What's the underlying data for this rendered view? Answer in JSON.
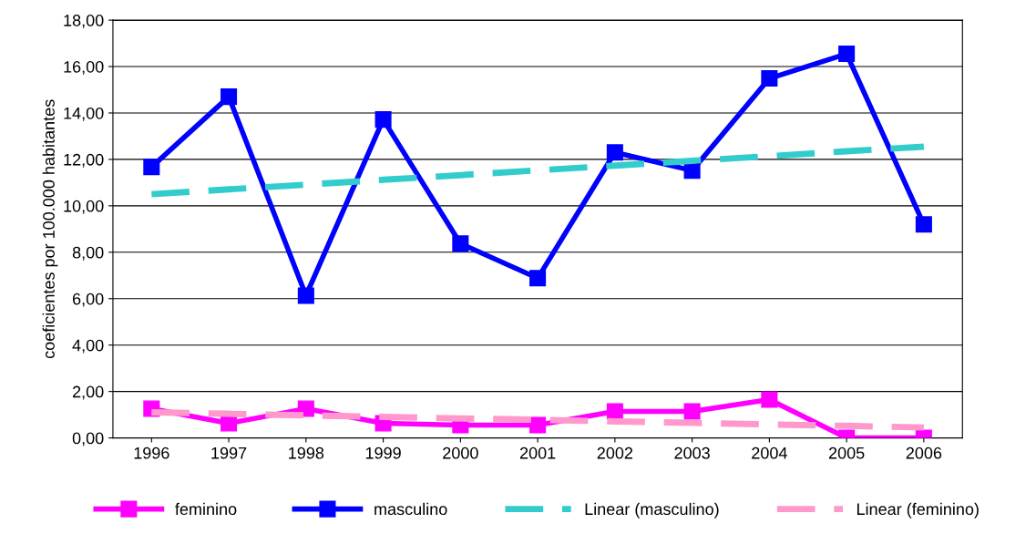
{
  "chart_data": {
    "type": "line",
    "ylabel": "coeficientes por 100.000 habitantes",
    "categories": [
      "1996",
      "1997",
      "1998",
      "1999",
      "2000",
      "2001",
      "2002",
      "2003",
      "2004",
      "2005",
      "2006"
    ],
    "ylim": [
      0,
      18
    ],
    "yticks": [
      {
        "value": 0,
        "label": "0,00"
      },
      {
        "value": 2,
        "label": "2,00"
      },
      {
        "value": 4,
        "label": "4,00"
      },
      {
        "value": 6,
        "label": "6,00"
      },
      {
        "value": 8,
        "label": "8,00"
      },
      {
        "value": 10,
        "label": "10,00"
      },
      {
        "value": 12,
        "label": "12,00"
      },
      {
        "value": 14,
        "label": "14,00"
      },
      {
        "value": 16,
        "label": "16,00"
      },
      {
        "value": 18,
        "label": "18,00"
      }
    ],
    "grid": "y",
    "legend": "bottom",
    "series": [
      {
        "name": "feminino",
        "color": "#ff00ff",
        "marker": "square",
        "line_style": "solid",
        "values": [
          1.26,
          0.63,
          1.26,
          0.63,
          0.55,
          0.55,
          1.14,
          1.14,
          1.65,
          0,
          0
        ]
      },
      {
        "name": "masculino",
        "color": "#0000ff",
        "marker": "square",
        "line_style": "solid",
        "values": [
          11.67,
          14.7,
          6.13,
          13.72,
          8.37,
          6.88,
          12.3,
          11.52,
          15.49,
          16.55,
          9.2
        ]
      },
      {
        "name": "Linear (masculino)",
        "color": "#33cccc",
        "marker": "none",
        "line_style": "dashed",
        "values": [
          10.5,
          10.71,
          10.91,
          11.12,
          11.32,
          11.53,
          11.73,
          11.94,
          12.14,
          12.35,
          12.55
        ]
      },
      {
        "name": "Linear (feminino)",
        "color": "#ff99cc",
        "marker": "none",
        "line_style": "dashed",
        "values": [
          1.1,
          1.04,
          0.97,
          0.91,
          0.84,
          0.78,
          0.71,
          0.65,
          0.58,
          0.52,
          0.45
        ]
      }
    ]
  }
}
